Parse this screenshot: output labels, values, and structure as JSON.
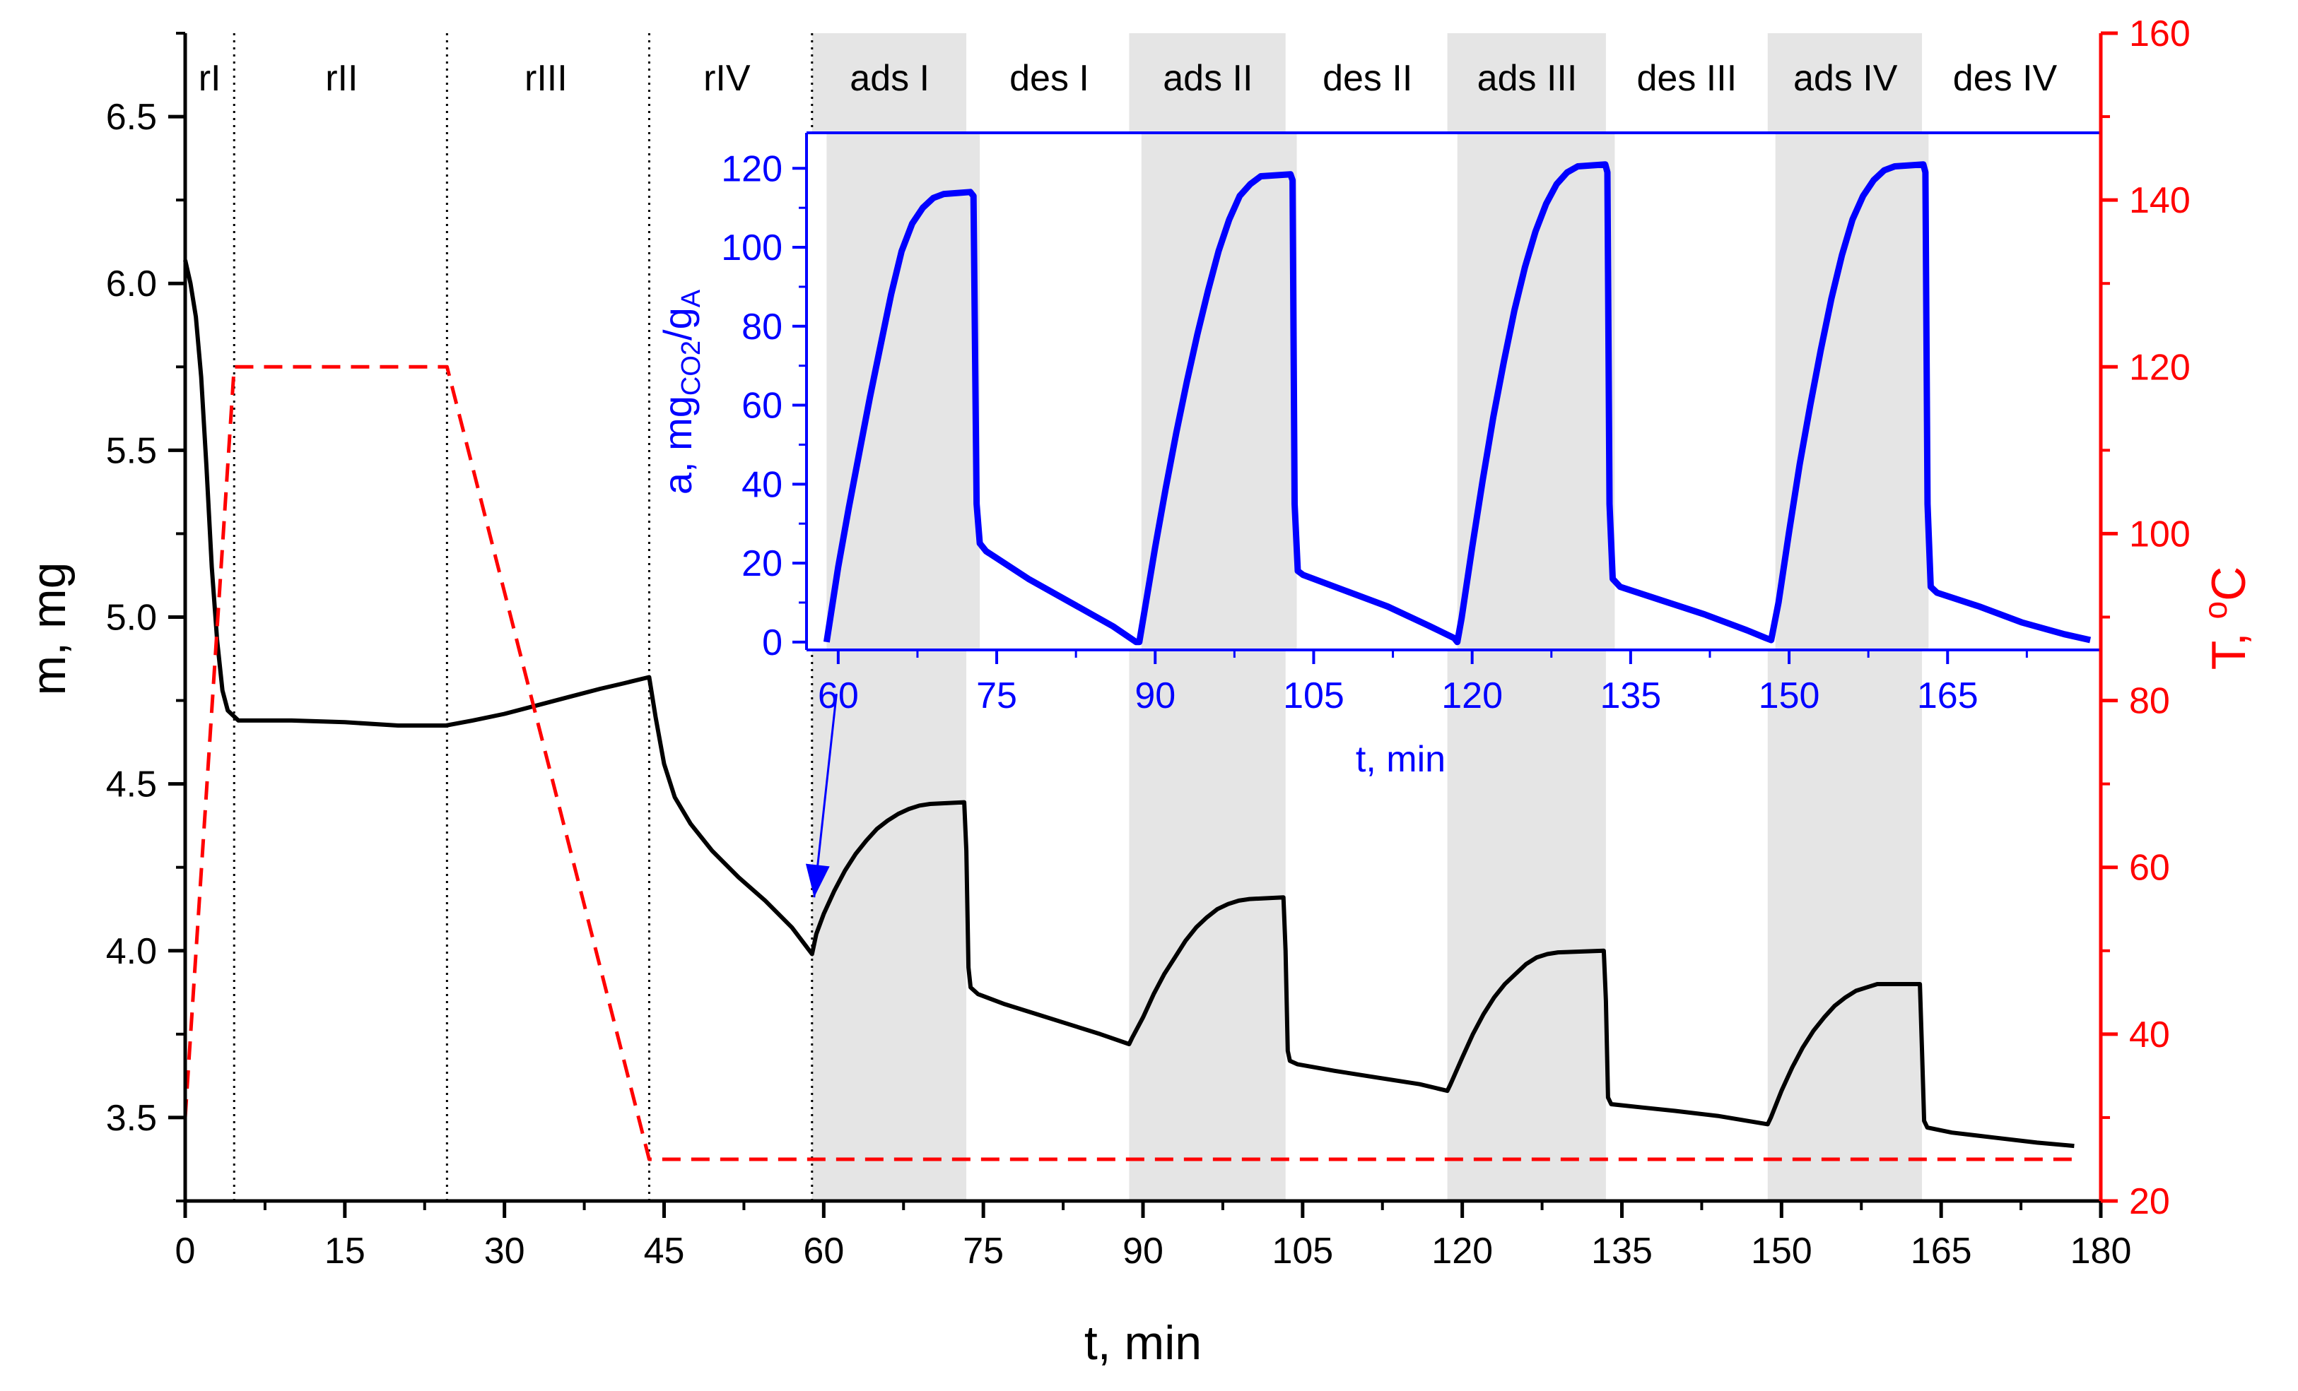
{
  "chart_data": [
    {
      "id": "main",
      "type": "line",
      "title": "",
      "xlabel": "t, min",
      "ylabel": "m, mg",
      "y2label_base": "T, ",
      "y2label_sup": "o",
      "y2label_unit": "C",
      "xlim": [
        0,
        180
      ],
      "ylim": [
        3.25,
        6.75
      ],
      "y2lim": [
        20,
        160
      ],
      "xticks": [
        0,
        15,
        30,
        45,
        60,
        75,
        90,
        105,
        120,
        135,
        150,
        165,
        180
      ],
      "yticks": [
        3.5,
        4.0,
        4.5,
        5.0,
        5.5,
        6.0,
        6.5
      ],
      "ytick_labels": [
        "3.5",
        "4.0",
        "4.5",
        "5.0",
        "5.5",
        "6.0",
        "6.5"
      ],
      "y2ticks": [
        20,
        40,
        60,
        80,
        100,
        120,
        140,
        160
      ],
      "colors": {
        "mass": "#000000",
        "temperature": "#ff0000",
        "shade": "#e5e5e5",
        "inset": "#0000ff"
      },
      "phase_dividers": [
        4.6,
        24.6,
        43.6,
        58.9
      ],
      "shaded_regions": [
        [
          58.9,
          73.4
        ],
        [
          88.7,
          103.4
        ],
        [
          118.6,
          133.5
        ],
        [
          148.7,
          163.2
        ]
      ],
      "phases": [
        {
          "label": "rI",
          "x": 2.3
        },
        {
          "label": "rII",
          "x": 14.7
        },
        {
          "label": "rIII",
          "x": 33.9
        },
        {
          "label": "rIV",
          "x": 50.9
        },
        {
          "label": "ads I",
          "x": 66.2
        },
        {
          "label": "des I",
          "x": 81.2
        },
        {
          "label": "ads II",
          "x": 96.1
        },
        {
          "label": "des II",
          "x": 111.1
        },
        {
          "label": "ads III",
          "x": 126.1
        },
        {
          "label": "des III",
          "x": 141.1
        },
        {
          "label": "ads IV",
          "x": 156.0
        },
        {
          "label": "des IV",
          "x": 171.0
        }
      ],
      "series": [
        {
          "name": "mass",
          "axis": "left",
          "style": "solid",
          "points": [
            [
              0,
              6.07
            ],
            [
              0.5,
              6.0
            ],
            [
              1,
              5.9
            ],
            [
              1.5,
              5.72
            ],
            [
              2,
              5.45
            ],
            [
              2.5,
              5.15
            ],
            [
              3,
              4.93
            ],
            [
              3.5,
              4.78
            ],
            [
              4,
              4.72
            ],
            [
              5,
              4.69
            ],
            [
              7,
              4.69
            ],
            [
              10,
              4.69
            ],
            [
              15,
              4.685
            ],
            [
              20,
              4.675
            ],
            [
              24.5,
              4.675
            ],
            [
              27,
              4.69
            ],
            [
              30,
              4.71
            ],
            [
              33,
              4.735
            ],
            [
              36,
              4.76
            ],
            [
              39,
              4.785
            ],
            [
              41,
              4.8
            ],
            [
              43.6,
              4.82
            ],
            [
              44.2,
              4.7
            ],
            [
              45,
              4.56
            ],
            [
              46,
              4.46
            ],
            [
              47.5,
              4.38
            ],
            [
              49.5,
              4.3
            ],
            [
              52,
              4.22
            ],
            [
              54.5,
              4.15
            ],
            [
              57,
              4.07
            ],
            [
              58.9,
              3.99
            ],
            [
              59.3,
              4.05
            ],
            [
              60,
              4.11
            ],
            [
              61,
              4.18
            ],
            [
              62,
              4.24
            ],
            [
              63,
              4.29
            ],
            [
              64,
              4.33
            ],
            [
              65,
              4.365
            ],
            [
              66,
              4.39
            ],
            [
              67,
              4.41
            ],
            [
              68,
              4.425
            ],
            [
              69,
              4.435
            ],
            [
              70,
              4.44
            ],
            [
              73.2,
              4.445
            ],
            [
              73.4,
              4.3
            ],
            [
              73.6,
              3.95
            ],
            [
              73.8,
              3.89
            ],
            [
              74.5,
              3.87
            ],
            [
              77,
              3.84
            ],
            [
              80,
              3.81
            ],
            [
              83,
              3.78
            ],
            [
              86,
              3.75
            ],
            [
              88.7,
              3.72
            ],
            [
              89,
              3.74
            ],
            [
              90,
              3.8
            ],
            [
              91,
              3.87
            ],
            [
              92,
              3.93
            ],
            [
              93,
              3.98
            ],
            [
              94,
              4.03
            ],
            [
              95,
              4.07
            ],
            [
              96,
              4.1
            ],
            [
              97,
              4.125
            ],
            [
              98,
              4.14
            ],
            [
              99,
              4.15
            ],
            [
              100,
              4.155
            ],
            [
              103.2,
              4.16
            ],
            [
              103.4,
              4.0
            ],
            [
              103.6,
              3.7
            ],
            [
              103.8,
              3.67
            ],
            [
              104.5,
              3.66
            ],
            [
              108,
              3.64
            ],
            [
              112,
              3.62
            ],
            [
              116,
              3.6
            ],
            [
              118.6,
              3.58
            ],
            [
              118.9,
              3.6
            ],
            [
              120,
              3.68
            ],
            [
              121,
              3.75
            ],
            [
              122,
              3.81
            ],
            [
              123,
              3.86
            ],
            [
              124,
              3.9
            ],
            [
              125,
              3.93
            ],
            [
              126,
              3.96
            ],
            [
              127,
              3.98
            ],
            [
              128,
              3.99
            ],
            [
              129,
              3.995
            ],
            [
              133.3,
              4.0
            ],
            [
              133.5,
              3.85
            ],
            [
              133.7,
              3.56
            ],
            [
              134,
              3.54
            ],
            [
              137,
              3.53
            ],
            [
              140,
              3.52
            ],
            [
              144,
              3.505
            ],
            [
              148.7,
              3.48
            ],
            [
              149,
              3.5
            ],
            [
              150,
              3.58
            ],
            [
              151,
              3.65
            ],
            [
              152,
              3.71
            ],
            [
              153,
              3.76
            ],
            [
              154,
              3.8
            ],
            [
              155,
              3.835
            ],
            [
              156,
              3.86
            ],
            [
              157,
              3.88
            ],
            [
              158,
              3.89
            ],
            [
              159,
              3.9
            ],
            [
              163,
              3.9
            ],
            [
              163.2,
              3.7
            ],
            [
              163.4,
              3.49
            ],
            [
              163.7,
              3.47
            ],
            [
              166,
              3.455
            ],
            [
              170,
              3.44
            ],
            [
              174,
              3.425
            ],
            [
              177.5,
              3.415
            ]
          ]
        },
        {
          "name": "temperature",
          "axis": "right",
          "style": "dashed",
          "points": [
            [
              0,
              30
            ],
            [
              4.6,
              120
            ],
            [
              24.6,
              120
            ],
            [
              43.6,
              25
            ],
            [
              177.5,
              25
            ]
          ]
        }
      ],
      "annotations": [
        {
          "type": "arrow",
          "from": [
            61.2,
            4.77
          ],
          "to": [
            59.1,
            4.16
          ]
        }
      ]
    },
    {
      "id": "inset",
      "type": "line",
      "title": "",
      "xlabel": "t, min",
      "ylabel_base": "a, mg",
      "ylabel_sub1": "CO2",
      "ylabel_mid": "/g",
      "ylabel_sub2": "A",
      "xlim": [
        57,
        179.5
      ],
      "ylim": [
        -2,
        129
      ],
      "xticks": [
        60,
        75,
        90,
        105,
        120,
        135,
        150,
        165
      ],
      "yticks": [
        0,
        20,
        40,
        60,
        80,
        100,
        120
      ],
      "series": [
        {
          "name": "uptake",
          "points": [
            [
              58.9,
              0
            ],
            [
              60,
              19
            ],
            [
              61,
              34
            ],
            [
              62,
              48
            ],
            [
              63,
              62
            ],
            [
              64,
              75
            ],
            [
              65,
              88
            ],
            [
              66,
              99
            ],
            [
              67,
              106
            ],
            [
              68,
              110
            ],
            [
              69,
              112.5
            ],
            [
              70,
              113.5
            ],
            [
              72.5,
              114
            ],
            [
              72.8,
              113
            ],
            [
              73.1,
              35
            ],
            [
              73.4,
              25
            ],
            [
              74,
              23
            ],
            [
              78,
              16
            ],
            [
              82,
              10
            ],
            [
              86,
              4
            ],
            [
              88.2,
              0
            ],
            [
              88.5,
              0
            ],
            [
              89,
              8
            ],
            [
              90,
              24
            ],
            [
              91,
              39
            ],
            [
              92,
              53
            ],
            [
              93,
              66
            ],
            [
              94,
              78
            ],
            [
              95,
              89
            ],
            [
              96,
              99
            ],
            [
              97,
              107
            ],
            [
              98,
              113
            ],
            [
              99,
              116
            ],
            [
              100,
              118
            ],
            [
              102.8,
              118.5
            ],
            [
              103,
              117
            ],
            [
              103.2,
              35
            ],
            [
              103.5,
              18
            ],
            [
              104,
              17
            ],
            [
              108,
              13
            ],
            [
              112,
              9
            ],
            [
              116,
              4
            ],
            [
              118.3,
              1
            ],
            [
              118.6,
              0
            ],
            [
              119,
              6
            ],
            [
              120,
              24
            ],
            [
              121,
              41
            ],
            [
              122,
              57
            ],
            [
              123,
              71
            ],
            [
              124,
              84
            ],
            [
              125,
              95
            ],
            [
              126,
              104
            ],
            [
              127,
              111
            ],
            [
              128,
              116
            ],
            [
              129,
              119
            ],
            [
              130,
              120.5
            ],
            [
              132.6,
              121
            ],
            [
              132.8,
              119
            ],
            [
              133,
              35
            ],
            [
              133.3,
              16
            ],
            [
              134,
              14
            ],
            [
              138,
              10.5
            ],
            [
              142,
              7
            ],
            [
              146,
              3
            ],
            [
              147.8,
              1
            ],
            [
              148.3,
              0.5
            ],
            [
              149,
              10
            ],
            [
              150,
              28
            ],
            [
              151,
              45
            ],
            [
              152,
              60
            ],
            [
              153,
              74
            ],
            [
              154,
              87
            ],
            [
              155,
              98
            ],
            [
              156,
              107
            ],
            [
              157,
              113
            ],
            [
              158,
              117
            ],
            [
              159,
              119.5
            ],
            [
              160,
              120.5
            ],
            [
              162.7,
              121
            ],
            [
              162.9,
              119
            ],
            [
              163.1,
              35
            ],
            [
              163.4,
              14
            ],
            [
              164,
              12.5
            ],
            [
              168,
              9
            ],
            [
              172,
              5
            ],
            [
              176,
              2
            ],
            [
              178.5,
              0.5
            ]
          ]
        }
      ]
    }
  ]
}
